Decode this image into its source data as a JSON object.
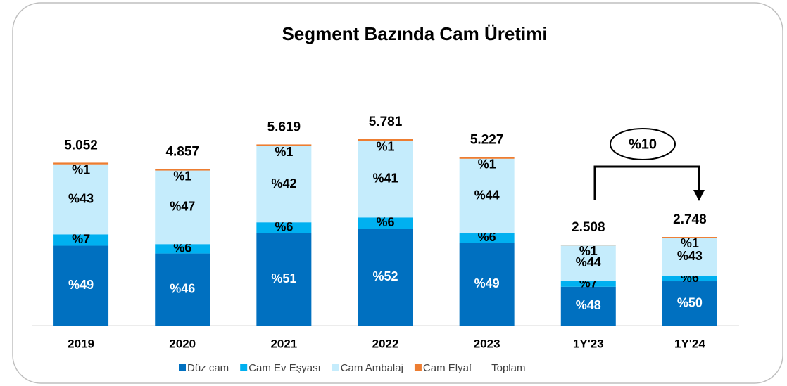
{
  "chart_data": {
    "type": "bar",
    "stacked": true,
    "title": "Segment Bazında Cam Üretimi",
    "categories": [
      "2019",
      "2020",
      "2021",
      "2022",
      "2023",
      "1Y'23",
      "1Y'24"
    ],
    "series": [
      {
        "name": "Düz cam",
        "color": "#0070c0",
        "values": [
          49,
          46,
          51,
          52,
          49,
          48,
          50
        ],
        "value_labels": [
          "%49",
          "%46",
          "%51",
          "%52",
          "%49",
          "%48",
          "%50"
        ]
      },
      {
        "name": "Cam Ev Eşyası",
        "color": "#00b0f0",
        "values": [
          7,
          6,
          6,
          6,
          6,
          7,
          6
        ],
        "value_labels": [
          "%7",
          "%6",
          "%6",
          "%6",
          "%6",
          "%7",
          "%6"
        ]
      },
      {
        "name": "Cam Ambalaj",
        "color": "#c5ecfc",
        "values": [
          43,
          47,
          42,
          41,
          44,
          44,
          43
        ],
        "value_labels": [
          "%43",
          "%47",
          "%42",
          "%41",
          "%44",
          "%44",
          "%43"
        ]
      },
      {
        "name": "Cam Elyaf",
        "color": "#ed7d31",
        "values": [
          1,
          1,
          1,
          1,
          1,
          1,
          1
        ],
        "value_labels": [
          "%1",
          "%1",
          "%1",
          "%1",
          "%1",
          "%1",
          "%1"
        ]
      }
    ],
    "totals": {
      "name": "Toplam",
      "values": [
        5052,
        4857,
        5619,
        5781,
        5227,
        2508,
        2748
      ],
      "value_labels": [
        "5.052",
        "4.857",
        "5.619",
        "5.781",
        "5.227",
        "2.508",
        "2.748"
      ]
    },
    "annotation": "%10"
  }
}
